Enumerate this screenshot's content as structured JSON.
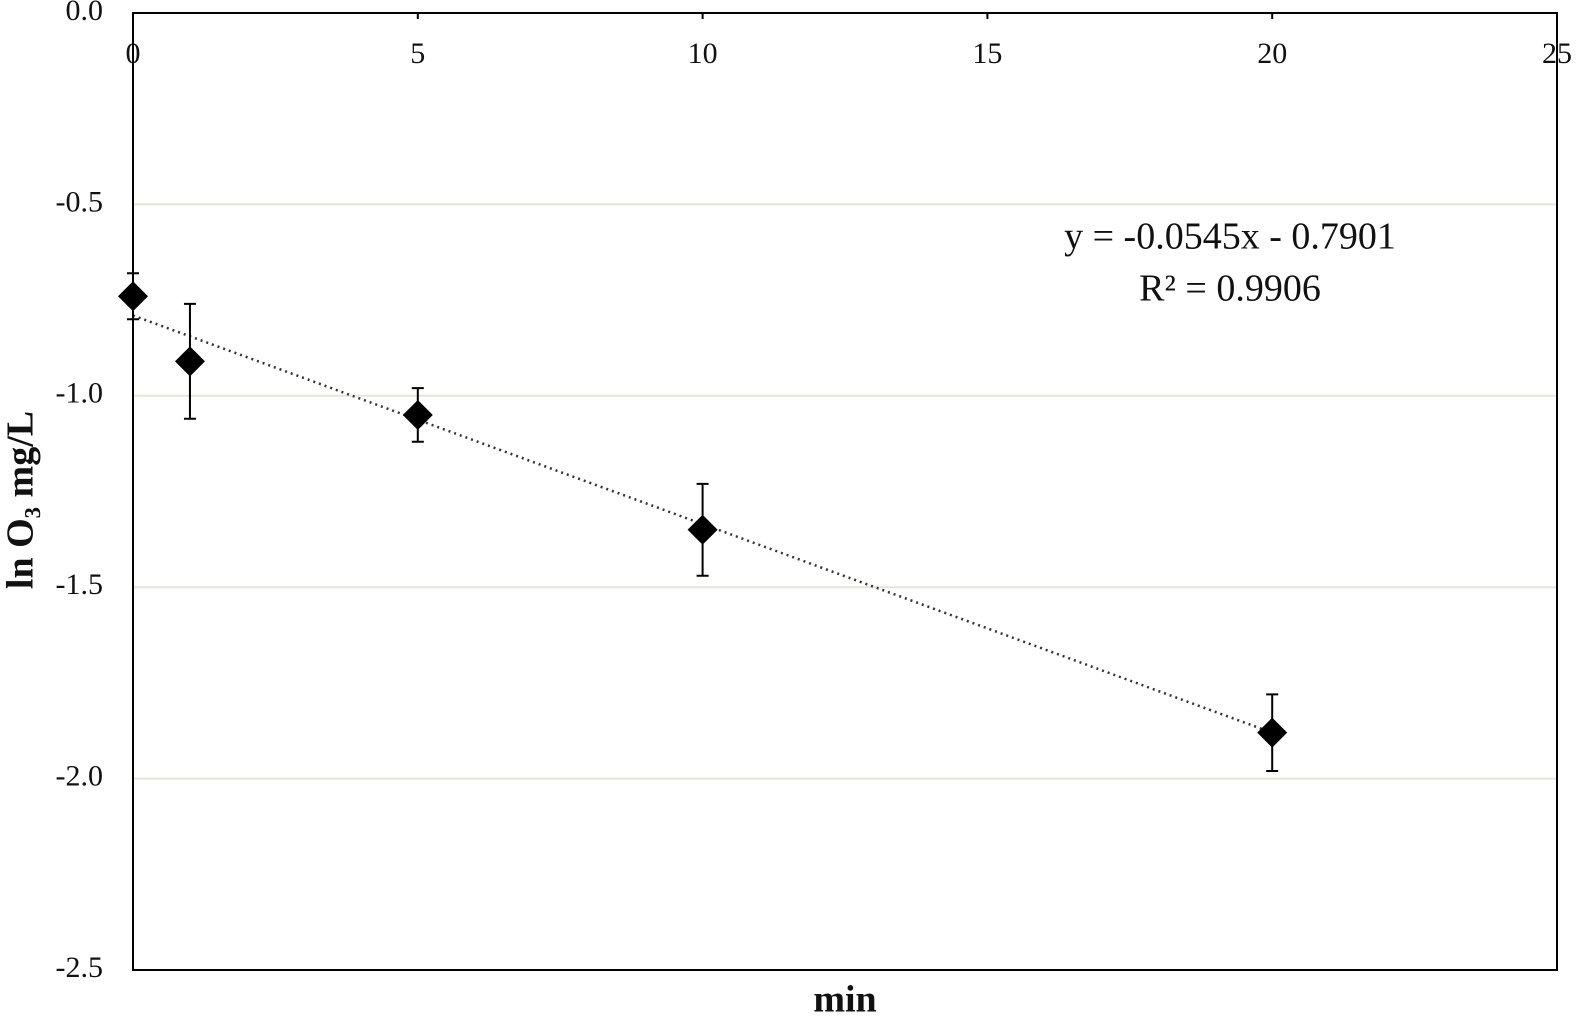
{
  "chart_data": {
    "type": "scatter",
    "x_label": "min",
    "y_label": "ln O₃ mg/L",
    "annotations": [
      "y = -0.0545x - 0.7901",
      "R² = 0.9906"
    ],
    "x": [
      0,
      1,
      5,
      10,
      20
    ],
    "series": [
      {
        "color": "#000000",
        "values": [
          -0.74,
          -0.91,
          -1.05,
          -1.35,
          -1.88
        ],
        "errors": [
          0.06,
          0.15,
          0.07,
          0.12,
          0.1
        ]
      }
    ],
    "trendline": {
      "slope": -0.0545,
      "intercept": -0.7901,
      "color": "#333333"
    },
    "xlim": [
      0,
      25
    ],
    "xticks": [
      0,
      5,
      10,
      15,
      20,
      25
    ],
    "ylim": [
      -2.5,
      0
    ],
    "yticks": [
      {
        "value": 0,
        "label": "0.0"
      },
      -0.5,
      {
        "value": -1,
        "label": "-1.0"
      },
      -1.5,
      {
        "value": -2,
        "label": "-2.0"
      },
      -2.5
    ],
    "grid": true,
    "grid_color": "#e6e6d8"
  }
}
